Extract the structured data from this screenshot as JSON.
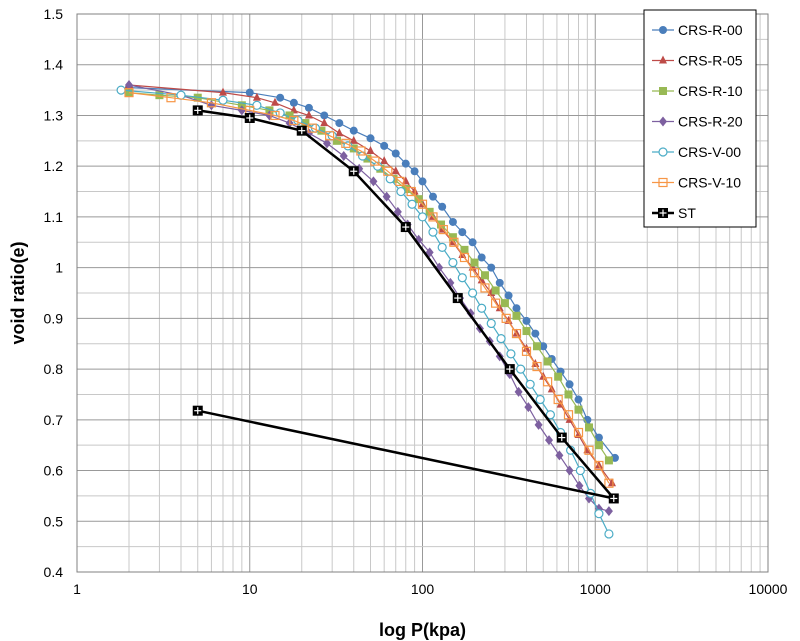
{
  "chart_data": {
    "type": "scatter",
    "xlabel": "log P(kpa)",
    "ylabel": "void ratio(e)",
    "x_scale": "log",
    "xlim": [
      1,
      10000
    ],
    "ylim": [
      0.4,
      1.5
    ],
    "x_ticks": [
      "1",
      "10",
      "100",
      "1000",
      "10000"
    ],
    "y_ticks": [
      "0.4",
      "0.5",
      "0.6",
      "0.7",
      "0.8",
      "0.9",
      "1",
      "1.1",
      "1.2",
      "1.3",
      "1.4",
      "1.5"
    ],
    "grid": true,
    "legend_position": "top-right",
    "series": [
      {
        "name": "CRS-R-00",
        "color": "#4a7ebb",
        "marker": "circle",
        "x": [
          2,
          10,
          15,
          18,
          22,
          27,
          33,
          40,
          50,
          60,
          70,
          80,
          90,
          100,
          115,
          130,
          150,
          170,
          195,
          220,
          250,
          280,
          315,
          350,
          400,
          450,
          500,
          560,
          630,
          710,
          800,
          900,
          1050,
          1300
        ],
        "y": [
          1.355,
          1.345,
          1.335,
          1.325,
          1.315,
          1.3,
          1.285,
          1.27,
          1.255,
          1.24,
          1.225,
          1.205,
          1.19,
          1.17,
          1.14,
          1.12,
          1.09,
          1.07,
          1.05,
          1.02,
          1.0,
          0.97,
          0.945,
          0.92,
          0.895,
          0.87,
          0.845,
          0.82,
          0.795,
          0.77,
          0.74,
          0.7,
          0.665,
          0.625
        ]
      },
      {
        "name": "CRS-R-05",
        "color": "#be4b48",
        "marker": "triangle",
        "x": [
          2,
          7,
          11,
          14,
          18,
          22,
          27,
          33,
          40,
          50,
          60,
          70,
          80,
          90,
          100,
          115,
          130,
          150,
          170,
          195,
          220,
          250,
          280,
          315,
          350,
          400,
          450,
          500,
          560,
          630,
          710,
          800,
          900,
          1050,
          1250
        ],
        "y": [
          1.36,
          1.345,
          1.335,
          1.325,
          1.31,
          1.3,
          1.285,
          1.265,
          1.25,
          1.23,
          1.21,
          1.19,
          1.17,
          1.15,
          1.125,
          1.1,
          1.075,
          1.05,
          1.025,
          1.0,
          0.975,
          0.95,
          0.92,
          0.895,
          0.87,
          0.84,
          0.81,
          0.785,
          0.76,
          0.73,
          0.7,
          0.67,
          0.64,
          0.61,
          0.575
        ]
      },
      {
        "name": "CRS-R-10",
        "color": "#98b954",
        "marker": "square",
        "x": [
          2,
          3,
          5,
          9,
          13,
          17,
          21,
          26,
          32,
          40,
          48,
          57,
          68,
          80,
          95,
          110,
          128,
          150,
          175,
          200,
          230,
          265,
          300,
          350,
          400,
          460,
          530,
          610,
          700,
          800,
          920,
          1050,
          1200
        ],
        "y": [
          1.345,
          1.34,
          1.335,
          1.32,
          1.31,
          1.3,
          1.285,
          1.27,
          1.25,
          1.235,
          1.215,
          1.195,
          1.175,
          1.155,
          1.135,
          1.11,
          1.085,
          1.06,
          1.035,
          1.01,
          0.985,
          0.955,
          0.93,
          0.905,
          0.875,
          0.845,
          0.815,
          0.785,
          0.75,
          0.72,
          0.685,
          0.65,
          0.62
        ]
      },
      {
        "name": "CRS-R-20",
        "color": "#7d60a0",
        "marker": "diamond",
        "x": [
          2,
          4,
          6,
          9,
          13,
          17,
          22,
          28,
          35,
          43,
          52,
          62,
          72,
          82,
          95,
          110,
          125,
          145,
          165,
          190,
          215,
          245,
          280,
          320,
          360,
          410,
          470,
          540,
          620,
          710,
          810,
          920,
          1050,
          1200
        ],
        "y": [
          1.36,
          1.34,
          1.32,
          1.31,
          1.3,
          1.285,
          1.265,
          1.245,
          1.22,
          1.195,
          1.17,
          1.14,
          1.11,
          1.085,
          1.055,
          1.03,
          1.0,
          0.97,
          0.94,
          0.91,
          0.88,
          0.855,
          0.825,
          0.79,
          0.755,
          0.725,
          0.69,
          0.66,
          0.63,
          0.6,
          0.57,
          0.545,
          0.525,
          0.52
        ]
      },
      {
        "name": "CRS-V-00",
        "color": "#4bacc6",
        "marker": "circle-open",
        "x": [
          1.8,
          4,
          7,
          11,
          15,
          19,
          24,
          30,
          37,
          45,
          55,
          65,
          75,
          87,
          100,
          115,
          130,
          150,
          170,
          195,
          220,
          250,
          285,
          325,
          370,
          420,
          480,
          550,
          630,
          720,
          820,
          940,
          1050,
          1200
        ],
        "y": [
          1.35,
          1.34,
          1.33,
          1.32,
          1.305,
          1.29,
          1.275,
          1.26,
          1.24,
          1.22,
          1.2,
          1.175,
          1.15,
          1.125,
          1.1,
          1.07,
          1.04,
          1.01,
          0.98,
          0.95,
          0.92,
          0.89,
          0.86,
          0.83,
          0.8,
          0.77,
          0.74,
          0.71,
          0.675,
          0.64,
          0.6,
          0.555,
          0.515,
          0.475
        ]
      },
      {
        "name": "CRS-V-10",
        "color": "#f79646",
        "marker": "square-open",
        "x": [
          2,
          3.5,
          6,
          10,
          14,
          18,
          23,
          29,
          36,
          44,
          53,
          63,
          74,
          86,
          100,
          115,
          132,
          152,
          175,
          200,
          230,
          265,
          305,
          350,
          400,
          460,
          530,
          610,
          700,
          800,
          920,
          1050,
          1200
        ],
        "y": [
          1.345,
          1.335,
          1.325,
          1.31,
          1.3,
          1.29,
          1.275,
          1.26,
          1.245,
          1.23,
          1.21,
          1.19,
          1.17,
          1.15,
          1.125,
          1.1,
          1.075,
          1.05,
          1.02,
          0.99,
          0.96,
          0.93,
          0.9,
          0.87,
          0.835,
          0.805,
          0.775,
          0.74,
          0.71,
          0.675,
          0.64,
          0.61,
          0.575
        ]
      },
      {
        "name": "ST",
        "color": "#000000",
        "marker": "square-cross",
        "x": [
          5,
          10,
          20,
          40,
          80,
          160,
          320,
          640,
          1280,
          5
        ],
        "y": [
          1.31,
          1.295,
          1.27,
          1.19,
          1.08,
          0.94,
          0.8,
          0.665,
          0.545,
          0.718
        ]
      }
    ]
  }
}
